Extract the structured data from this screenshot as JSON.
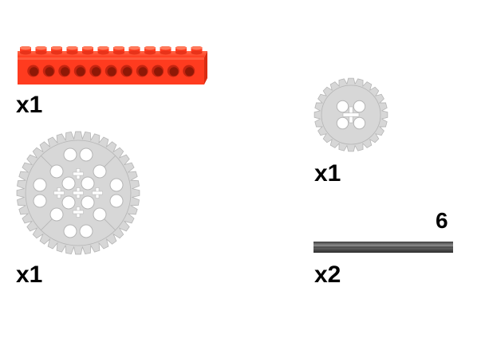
{
  "parts": [
    {
      "name": "technic-brick-1x12",
      "quantity": "x1",
      "color": "#ff3b1f"
    },
    {
      "name": "gear-24-tooth",
      "quantity": "x1",
      "color": "#d7d7d7"
    },
    {
      "name": "gear-40-tooth",
      "quantity": "x1",
      "color": "#d7d7d7"
    },
    {
      "name": "axle",
      "quantity": "x2",
      "length": "6",
      "color": "#5a5a5a"
    }
  ]
}
